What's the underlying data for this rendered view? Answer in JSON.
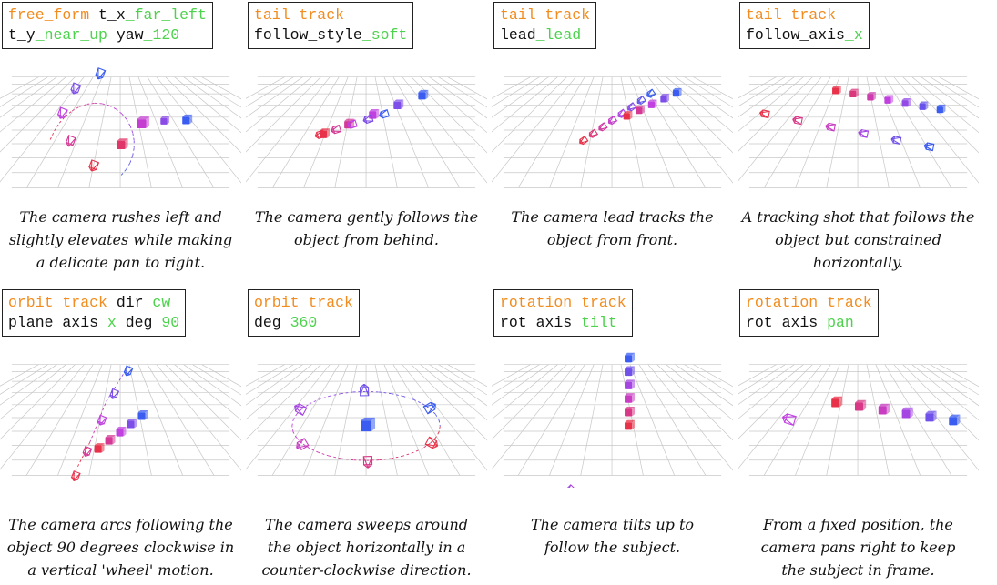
{
  "panels": [
    {
      "lines": [
        [
          {
            "text": "free_form",
            "c": "orange"
          },
          {
            "text": " t_x",
            "c": "black"
          },
          {
            "text": "_far_left",
            "c": "green"
          }
        ],
        [
          {
            "text": "t_y",
            "c": "black"
          },
          {
            "text": "_near_up",
            "c": "green"
          },
          {
            "text": " yaw",
            "c": "black"
          },
          {
            "text": "_120",
            "c": "green"
          }
        ]
      ],
      "caption": [
        "The camera rushes left and",
        "slightly elevates while making",
        "a delicate pan to right."
      ]
    },
    {
      "lines": [
        [
          {
            "text": "tail track",
            "c": "orange"
          }
        ],
        [
          {
            "text": "follow_style",
            "c": "black"
          },
          {
            "text": "_soft",
            "c": "green"
          }
        ]
      ],
      "caption": [
        "The camera gently follows the",
        "object from behind."
      ]
    },
    {
      "lines": [
        [
          {
            "text": "tail track",
            "c": "orange"
          }
        ],
        [
          {
            "text": "lead",
            "c": "black"
          },
          {
            "text": "_lead",
            "c": "green"
          }
        ]
      ],
      "caption": [
        "The camera lead tracks the",
        "object from front."
      ]
    },
    {
      "lines": [
        [
          {
            "text": "tail track",
            "c": "orange"
          }
        ],
        [
          {
            "text": "follow_axis",
            "c": "black"
          },
          {
            "text": "_x",
            "c": "green"
          }
        ]
      ],
      "caption": [
        "A tracking shot that follows the",
        "object but constrained horizontally."
      ]
    },
    {
      "lines": [
        [
          {
            "text": "orbit track",
            "c": "orange"
          },
          {
            "text": " dir",
            "c": "black"
          },
          {
            "text": "_cw",
            "c": "green"
          }
        ],
        [
          {
            "text": "plane_axis",
            "c": "black"
          },
          {
            "text": "_x",
            "c": "green"
          },
          {
            "text": " deg",
            "c": "black"
          },
          {
            "text": "_90",
            "c": "green"
          }
        ]
      ],
      "caption": [
        "The camera arcs following the",
        "object 90 degrees clockwise in",
        "a vertical 'wheel' motion."
      ]
    },
    {
      "lines": [
        [
          {
            "text": "orbit track",
            "c": "orange"
          }
        ],
        [
          {
            "text": "deg",
            "c": "black"
          },
          {
            "text": "_360",
            "c": "green"
          }
        ]
      ],
      "caption": [
        "The camera sweeps around",
        "the object horizontally in a",
        "counter-clockwise direction."
      ]
    },
    {
      "lines": [
        [
          {
            "text": "rotation track",
            "c": "orange"
          }
        ],
        [
          {
            "text": "rot_axis",
            "c": "black"
          },
          {
            "text": "_tilt",
            "c": "green"
          }
        ]
      ],
      "caption": [
        "The camera tilts up to",
        "follow the subject."
      ]
    },
    {
      "lines": [
        [
          {
            "text": "rotation track",
            "c": "orange"
          }
        ],
        [
          {
            "text": "rot_axis",
            "c": "black"
          },
          {
            "text": "_pan",
            "c": "green"
          }
        ]
      ],
      "caption": [
        "From a fixed position, the",
        "camera pans right to keep",
        "the subject in frame."
      ]
    }
  ],
  "colors": {
    "orange": "#f28c1e",
    "green": "#4cd24c",
    "text": "#111111",
    "start": "#e8324a",
    "mid": "#c040e0",
    "end": "#3a5cf0"
  }
}
